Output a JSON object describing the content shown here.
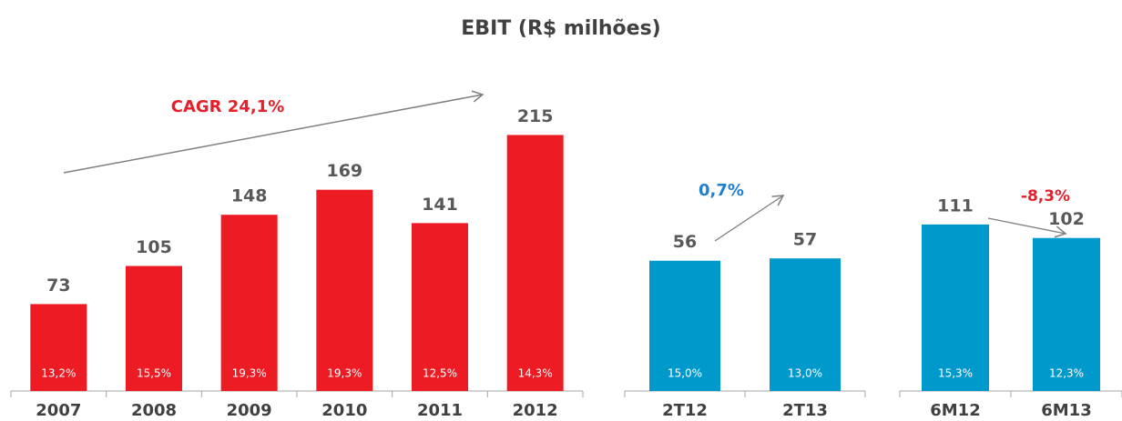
{
  "title": "EBIT (R$ milhões)",
  "chart_data": [
    {
      "type": "bar",
      "categories": [
        "2007",
        "2008",
        "2009",
        "2010",
        "2011",
        "2012"
      ],
      "values": [
        73,
        105,
        148,
        169,
        141,
        215
      ],
      "color": "#ed1c24",
      "margins": [
        13.2,
        15.5,
        19.3,
        19.3,
        12.5,
        14.3
      ],
      "margin_labels": [
        "13,2%",
        "15,5%",
        "19,3%",
        "19,3%",
        "12,5%",
        "14,3%"
      ],
      "ylim": [
        0,
        252
      ],
      "annotation": "CAGR 24,1%"
    },
    {
      "type": "bar",
      "categories": [
        "2T12",
        "2T13"
      ],
      "values": [
        56,
        57
      ],
      "color": "#0099cc",
      "margins": [
        15.0,
        13.0
      ],
      "margin_labels": [
        "15,0%",
        "13,0%"
      ],
      "ylim": [
        0,
        129
      ],
      "annotation": "0,7%"
    },
    {
      "type": "bar",
      "categories": [
        "6M12",
        "6M13"
      ],
      "values": [
        111,
        102
      ],
      "color": "#0099cc",
      "margins": [
        15.3,
        12.3
      ],
      "margin_labels": [
        "15,3%",
        "12,3%"
      ],
      "ylim": [
        0,
        200
      ],
      "annotation": "-8,3%"
    }
  ]
}
